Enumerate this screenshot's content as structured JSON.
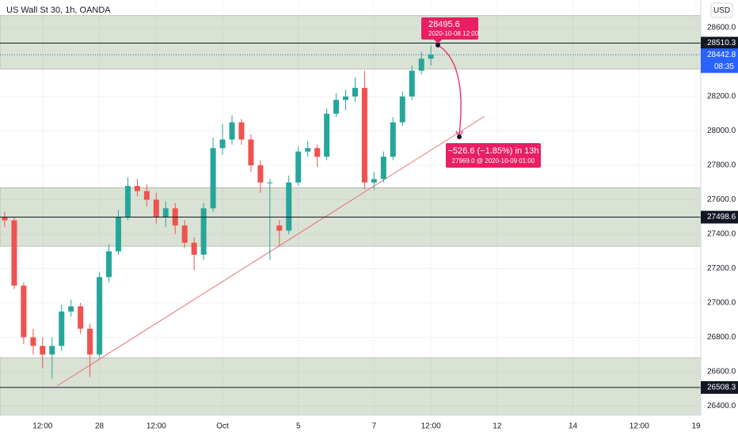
{
  "chart_data": {
    "type": "candlestick",
    "title": "US Wall St 30, 1h, OANDA",
    "currency": "USD",
    "categories": [
      null,
      null,
      null,
      null,
      "12:00",
      null,
      null,
      null,
      null,
      null,
      "28",
      null,
      null,
      null,
      null,
      null,
      "12:00",
      null,
      null,
      null,
      null,
      null,
      null,
      "Oct",
      null,
      null,
      null,
      null,
      null,
      null,
      null,
      "5",
      null,
      null,
      null,
      null,
      null,
      null,
      null,
      "7",
      null,
      null,
      null,
      null,
      null,
      "12:00",
      null,
      null,
      null,
      null,
      null,
      null,
      "12",
      null,
      null,
      null,
      null,
      null,
      null,
      null,
      "14",
      null,
      null,
      null,
      null,
      null,
      null,
      "12:00",
      null,
      null,
      null,
      null,
      null,
      "19"
    ],
    "open": [
      27500,
      27480,
      27100,
      26800,
      26750,
      26700,
      26750,
      26950,
      26980,
      26850,
      26700,
      27150,
      27300,
      27500,
      27680,
      27650,
      27600,
      27500,
      27550,
      27450,
      27350,
      27280,
      27550,
      27900,
      27950,
      28050,
      27950,
      27800,
      27700,
      27450,
      27420,
      27700,
      27880,
      27900,
      27850,
      28100,
      28180,
      28200,
      28250,
      27700,
      27720,
      27850,
      28050,
      28200,
      28350,
      28420,
      null,
      null,
      null,
      null,
      null,
      null,
      null,
      null,
      null,
      null,
      null,
      null,
      null,
      null,
      null,
      null,
      null,
      null,
      null,
      null,
      null,
      null,
      null,
      null,
      null,
      null,
      null,
      null
    ],
    "high": [
      27530,
      27500,
      27120,
      26850,
      26800,
      26800,
      26990,
      27020,
      27000,
      26880,
      27180,
      27340,
      27540,
      27730,
      27720,
      27690,
      27640,
      27590,
      27580,
      27480,
      27380,
      27580,
      27960,
      28040,
      28090,
      28070,
      27980,
      27830,
      27720,
      27480,
      27740,
      27910,
      27940,
      27920,
      28130,
      28220,
      28240,
      28310,
      28350,
      27760,
      27880,
      28080,
      28230,
      28380,
      28460,
      28495.6,
      null,
      null,
      null,
      null,
      null,
      null,
      null,
      null,
      null,
      null,
      null,
      null,
      null,
      null,
      null,
      null,
      null,
      null,
      null,
      null,
      null,
      null,
      null,
      null,
      null,
      null,
      null,
      null
    ],
    "low": [
      27440,
      27080,
      26760,
      26700,
      26620,
      26560,
      26720,
      26920,
      26820,
      26570,
      26680,
      27120,
      27280,
      27480,
      27620,
      27560,
      27460,
      27440,
      27400,
      27320,
      27190,
      27250,
      27530,
      27860,
      27920,
      27920,
      27760,
      27640,
      27250,
      27330,
      27400,
      27680,
      27850,
      27790,
      27830,
      28080,
      28120,
      28170,
      27660,
      27660,
      27700,
      27830,
      28030,
      28180,
      28330,
      28380,
      null,
      null,
      null,
      null,
      null,
      null,
      null,
      null,
      null,
      null,
      null,
      null,
      null,
      null,
      null,
      null,
      null,
      null,
      null,
      null,
      null,
      null,
      null,
      null,
      null,
      null,
      null,
      null
    ],
    "close": [
      27480,
      27100,
      26800,
      26750,
      26700,
      26750,
      26950,
      26980,
      26850,
      26700,
      27150,
      27300,
      27500,
      27680,
      27650,
      27600,
      27500,
      27550,
      27450,
      27350,
      27280,
      27550,
      27900,
      27950,
      28050,
      27950,
      27800,
      27700,
      27700,
      27420,
      27700,
      27880,
      27900,
      27850,
      28100,
      28180,
      28200,
      28250,
      27700,
      27720,
      27850,
      28050,
      28200,
      28350,
      28420,
      28442.8,
      null,
      null,
      null,
      null,
      null,
      null,
      null,
      null,
      null,
      null,
      null,
      null,
      null,
      null,
      null,
      null,
      null,
      null,
      null,
      null,
      null,
      null,
      null,
      null,
      null,
      null,
      null,
      null
    ],
    "up_color": "#26a69a",
    "down_color": "#ef5350",
    "ylim": [
      26347,
      28761
    ],
    "yticks": [
      {
        "value": 26400,
        "label": "26400.0"
      },
      {
        "value": 26600,
        "label": "26600.0"
      },
      {
        "value": 26800,
        "label": "26800.0"
      },
      {
        "value": 27000,
        "label": "27000.0"
      },
      {
        "value": 27200,
        "label": "27200.0"
      },
      {
        "value": 27400,
        "label": "27400.0"
      },
      {
        "value": 27600,
        "label": "27600.0"
      },
      {
        "value": 27800,
        "label": "27800.0"
      },
      {
        "value": 28000,
        "label": "28000.0"
      },
      {
        "value": 28200,
        "label": "28200.0"
      },
      {
        "value": 28600,
        "label": "28600.0"
      }
    ],
    "grid": true,
    "zones": [
      {
        "top": 28670,
        "bottom": 28360
      },
      {
        "top": 27670,
        "bottom": 27330
      },
      {
        "top": 26680,
        "bottom": 26347
      }
    ],
    "price_lines": [
      28510.3,
      27498.6,
      26508.3
    ],
    "last_price": 28442.8,
    "countdown": "08:35",
    "marker": {
      "value": 28495.6,
      "time": "2020-10-08 12:00"
    },
    "projection": {
      "change": "−526.6 (−1.85%) in 13h",
      "target": "27969.0 @ 2020-10-09  01:00"
    }
  }
}
